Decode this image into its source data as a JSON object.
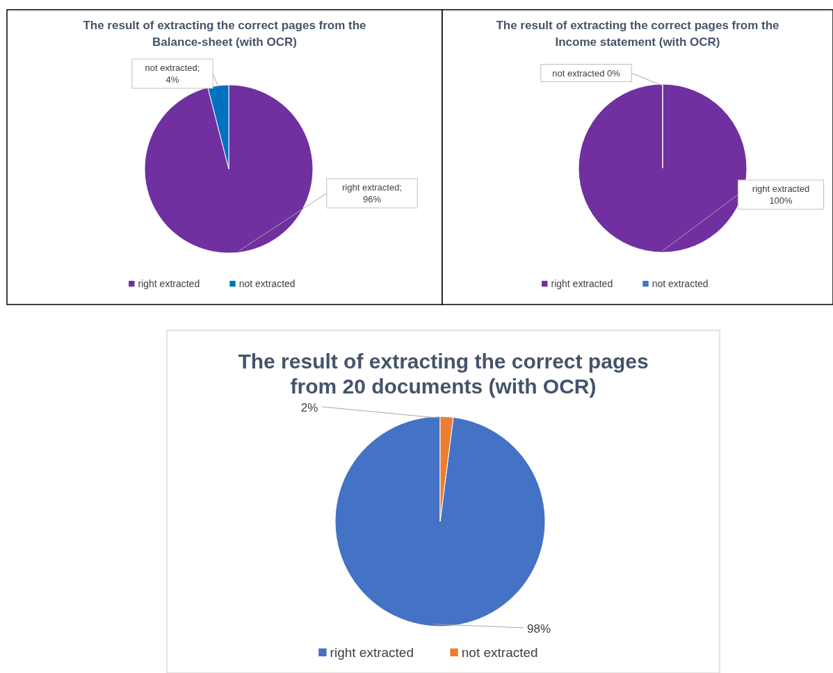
{
  "chart_data": [
    {
      "type": "pie",
      "title": "The result of extracting the correct pages from the Balance-sheet (with OCR)",
      "categories": [
        "right extracted",
        "not extracted"
      ],
      "values": [
        96,
        4
      ],
      "colors": [
        "#7030a0",
        "#0070c0"
      ],
      "value_labels": [
        "right extracted; 96%",
        "not extracted; 4%"
      ],
      "legend": "bottom"
    },
    {
      "type": "pie",
      "title": "The result of extracting the correct pages from the Income statement (with OCR)",
      "categories": [
        "right extracted",
        "not extracted"
      ],
      "values": [
        100,
        0
      ],
      "colors": [
        "#7030a0",
        "#4472c4"
      ],
      "value_labels": [
        "right extracted 100%",
        "not extracted 0%"
      ],
      "legend": "bottom"
    },
    {
      "type": "pie",
      "title": "The result of extracting the correct pages from 20 documents (with OCR)",
      "categories": [
        "right extracted",
        "not extracted"
      ],
      "values": [
        98,
        2
      ],
      "colors": [
        "#4472c4",
        "#ed7d31"
      ],
      "value_labels": [
        "98%",
        "2%"
      ],
      "legend": "bottom"
    }
  ]
}
